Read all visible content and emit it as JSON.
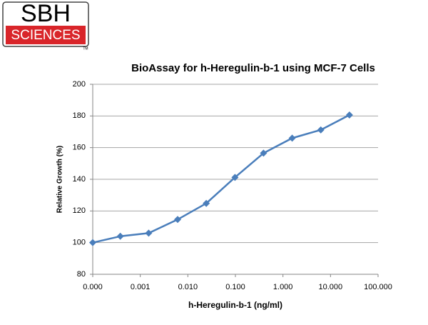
{
  "logo": {
    "top": "SBH",
    "bottom": "SCIENCES",
    "tm": "TM"
  },
  "chart_data": {
    "type": "line",
    "title": "BioAssay for h-Heregulin-b-1 using MCF-7 Cells",
    "x_label": "h-Heregulin-b-1 (ng/ml)",
    "y_label": "Relative Growth (%)",
    "x": [
      0.0001,
      0.00038,
      0.0015,
      0.0061,
      0.0244,
      0.098,
      0.39,
      1.5625,
      6.25,
      25
    ],
    "series": [
      {
        "name": "Relative Growth",
        "color": "#4a7ebb",
        "values": [
          100,
          104,
          106,
          114.6,
          124.8,
          141.2,
          156.5,
          166,
          171.2,
          180.6
        ]
      }
    ],
    "xscale": "log",
    "xlim": [
      0.0001,
      100
    ],
    "xticks": [
      {
        "value": 0.0001,
        "label": "0.000"
      },
      {
        "value": 0.001,
        "label": "0.001"
      },
      {
        "value": 0.01,
        "label": "0.010"
      },
      {
        "value": 0.1,
        "label": "0.100"
      },
      {
        "value": 1,
        "label": "1.000"
      },
      {
        "value": 10,
        "label": "10.000"
      },
      {
        "value": 100,
        "label": "100.000"
      }
    ],
    "ylim": [
      80,
      200
    ],
    "yticks": [
      80,
      100,
      120,
      140,
      160,
      180,
      200
    ],
    "grid": true
  }
}
